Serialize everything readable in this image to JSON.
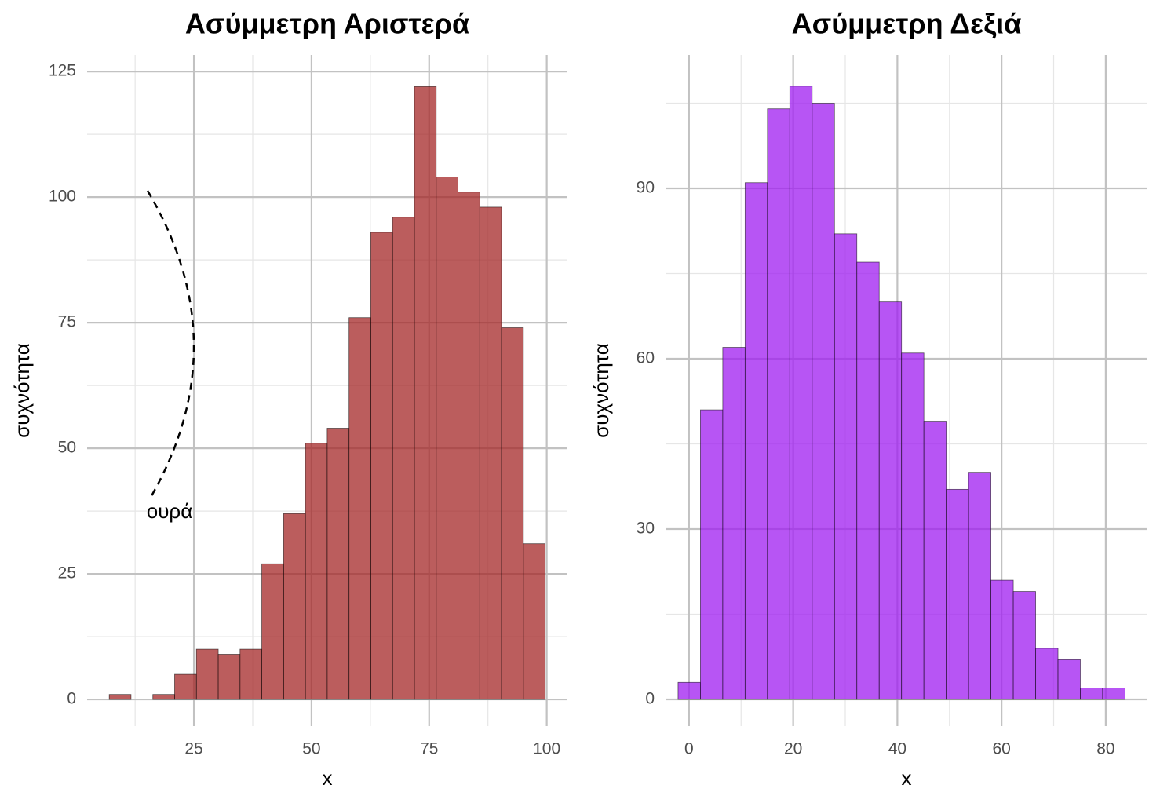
{
  "chart_data": [
    {
      "type": "histogram",
      "title": "Ασύμμετρη Αριστερά",
      "xlabel": "x",
      "ylabel": "συχνότητα",
      "bins": [
        7.0,
        11.63,
        16.27,
        20.9,
        25.53,
        30.17,
        34.8,
        39.43,
        44.07,
        48.7,
        53.33,
        57.97,
        62.6,
        67.23,
        71.87,
        76.5,
        81.13,
        85.77,
        90.4,
        95.03,
        99.67
      ],
      "values": [
        1,
        0,
        1,
        5,
        10,
        9,
        10,
        27,
        37,
        51,
        54,
        76,
        93,
        96,
        122,
        104,
        101,
        98,
        74,
        31
      ],
      "color": "#a52a2a",
      "xlim": [
        2.3,
        104.4
      ],
      "ylim": [
        -5.3,
        128.3
      ],
      "xticks": [
        25,
        50,
        75,
        100
      ],
      "yticks": [
        0,
        25,
        50,
        75,
        100,
        125
      ],
      "grid": true,
      "annotation": "ουρά"
    },
    {
      "type": "histogram",
      "title": "Ασύμμετρη Δεξιά",
      "xlabel": "x",
      "ylabel": "συχνότητα",
      "bins": [
        -2.1,
        2.19,
        6.48,
        10.77,
        15.06,
        19.35,
        23.64,
        27.93,
        32.22,
        36.51,
        40.8,
        45.09,
        49.38,
        53.67,
        57.96,
        62.25,
        66.54,
        70.83,
        75.12,
        79.41,
        83.7
      ],
      "values": [
        3,
        51,
        62,
        91,
        104,
        108,
        105,
        82,
        77,
        70,
        61,
        49,
        37,
        40,
        21,
        19,
        9,
        7,
        2,
        2
      ],
      "color": "#a020f0",
      "xlim": [
        -4.5,
        88.0
      ],
      "ylim": [
        -4.7,
        113.5
      ],
      "xticks": [
        0,
        20,
        40,
        60,
        80
      ],
      "yticks": [
        0,
        30,
        60,
        90
      ],
      "grid": true
    }
  ]
}
